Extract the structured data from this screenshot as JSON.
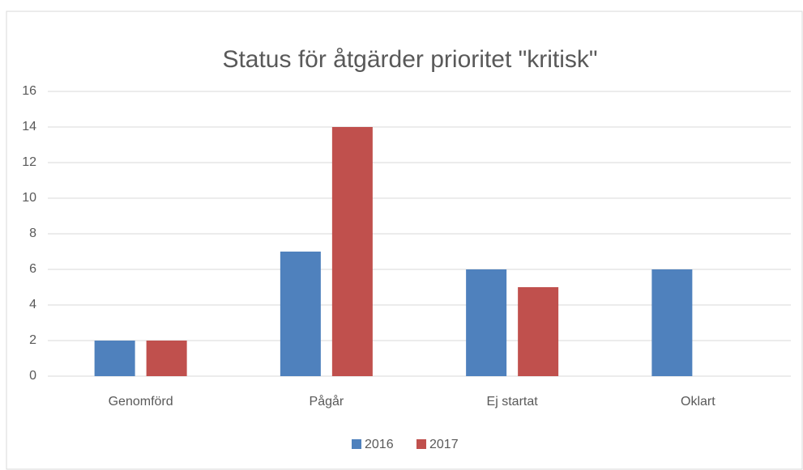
{
  "chart_data": {
    "type": "bar",
    "title": "Status för åtgärder prioritet \"kritisk\"",
    "categories": [
      "Genomförd",
      "Pågår",
      "Ej startat",
      "Oklart"
    ],
    "series": [
      {
        "name": "2016",
        "color": "#4f81bd",
        "values": [
          2,
          7,
          6,
          6
        ]
      },
      {
        "name": "2017",
        "color": "#c0504d",
        "values": [
          2,
          14,
          5,
          0
        ]
      }
    ],
    "ylim": [
      0,
      16
    ],
    "yticks": [
      0,
      2,
      4,
      6,
      8,
      10,
      12,
      14,
      16
    ],
    "grid": true,
    "legend": "bottom"
  }
}
